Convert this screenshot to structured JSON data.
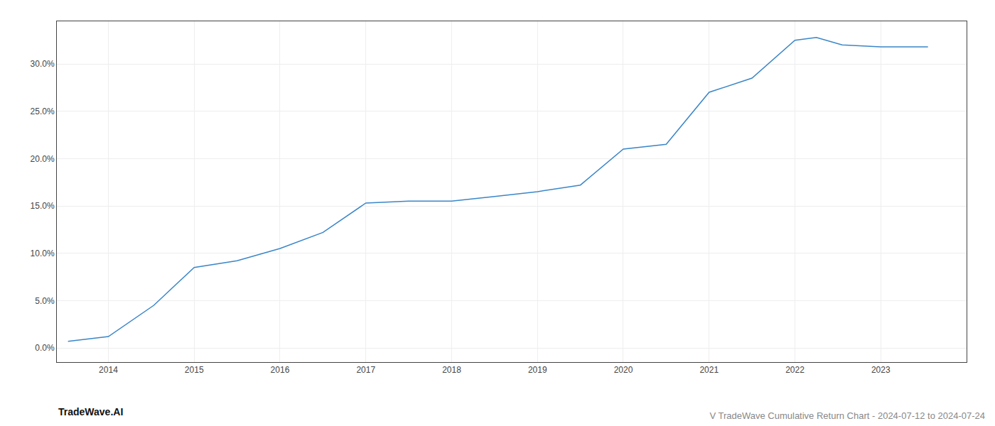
{
  "chart_data": {
    "type": "line",
    "title": "V TradeWave Cumulative Return Chart - 2024-07-12 to 2024-07-24",
    "annotations": [
      "TradeWave.AI"
    ],
    "x": [
      2013.53,
      2014.0,
      2014.53,
      2015.0,
      2015.5,
      2016.0,
      2016.5,
      2017.0,
      2017.5,
      2018.0,
      2018.5,
      2019.0,
      2019.5,
      2020.0,
      2020.5,
      2021.0,
      2021.5,
      2022.0,
      2022.25,
      2022.55,
      2023.0,
      2023.55
    ],
    "values": [
      0.007,
      0.012,
      0.045,
      0.085,
      0.092,
      0.105,
      0.122,
      0.153,
      0.155,
      0.155,
      0.16,
      0.165,
      0.172,
      0.21,
      0.215,
      0.27,
      0.285,
      0.325,
      0.328,
      0.32,
      0.318,
      0.318
    ],
    "color": "#3a86c8",
    "xlim": [
      2013.4,
      2024.0
    ],
    "xticks": [
      2014,
      2015,
      2016,
      2017,
      2018,
      2019,
      2020,
      2021,
      2022,
      2023
    ],
    "ylim": [
      -0.015,
      0.345
    ],
    "yticks": [
      {
        "value": 0.0,
        "label": "0.0%"
      },
      {
        "value": 0.05,
        "label": "5.0%"
      },
      {
        "value": 0.1,
        "label": "10.0%"
      },
      {
        "value": 0.15,
        "label": "15.0%"
      },
      {
        "value": 0.2,
        "label": "20.0%"
      },
      {
        "value": 0.25,
        "label": "25.0%"
      },
      {
        "value": 0.3,
        "label": "30.0%"
      }
    ],
    "grid": true
  }
}
